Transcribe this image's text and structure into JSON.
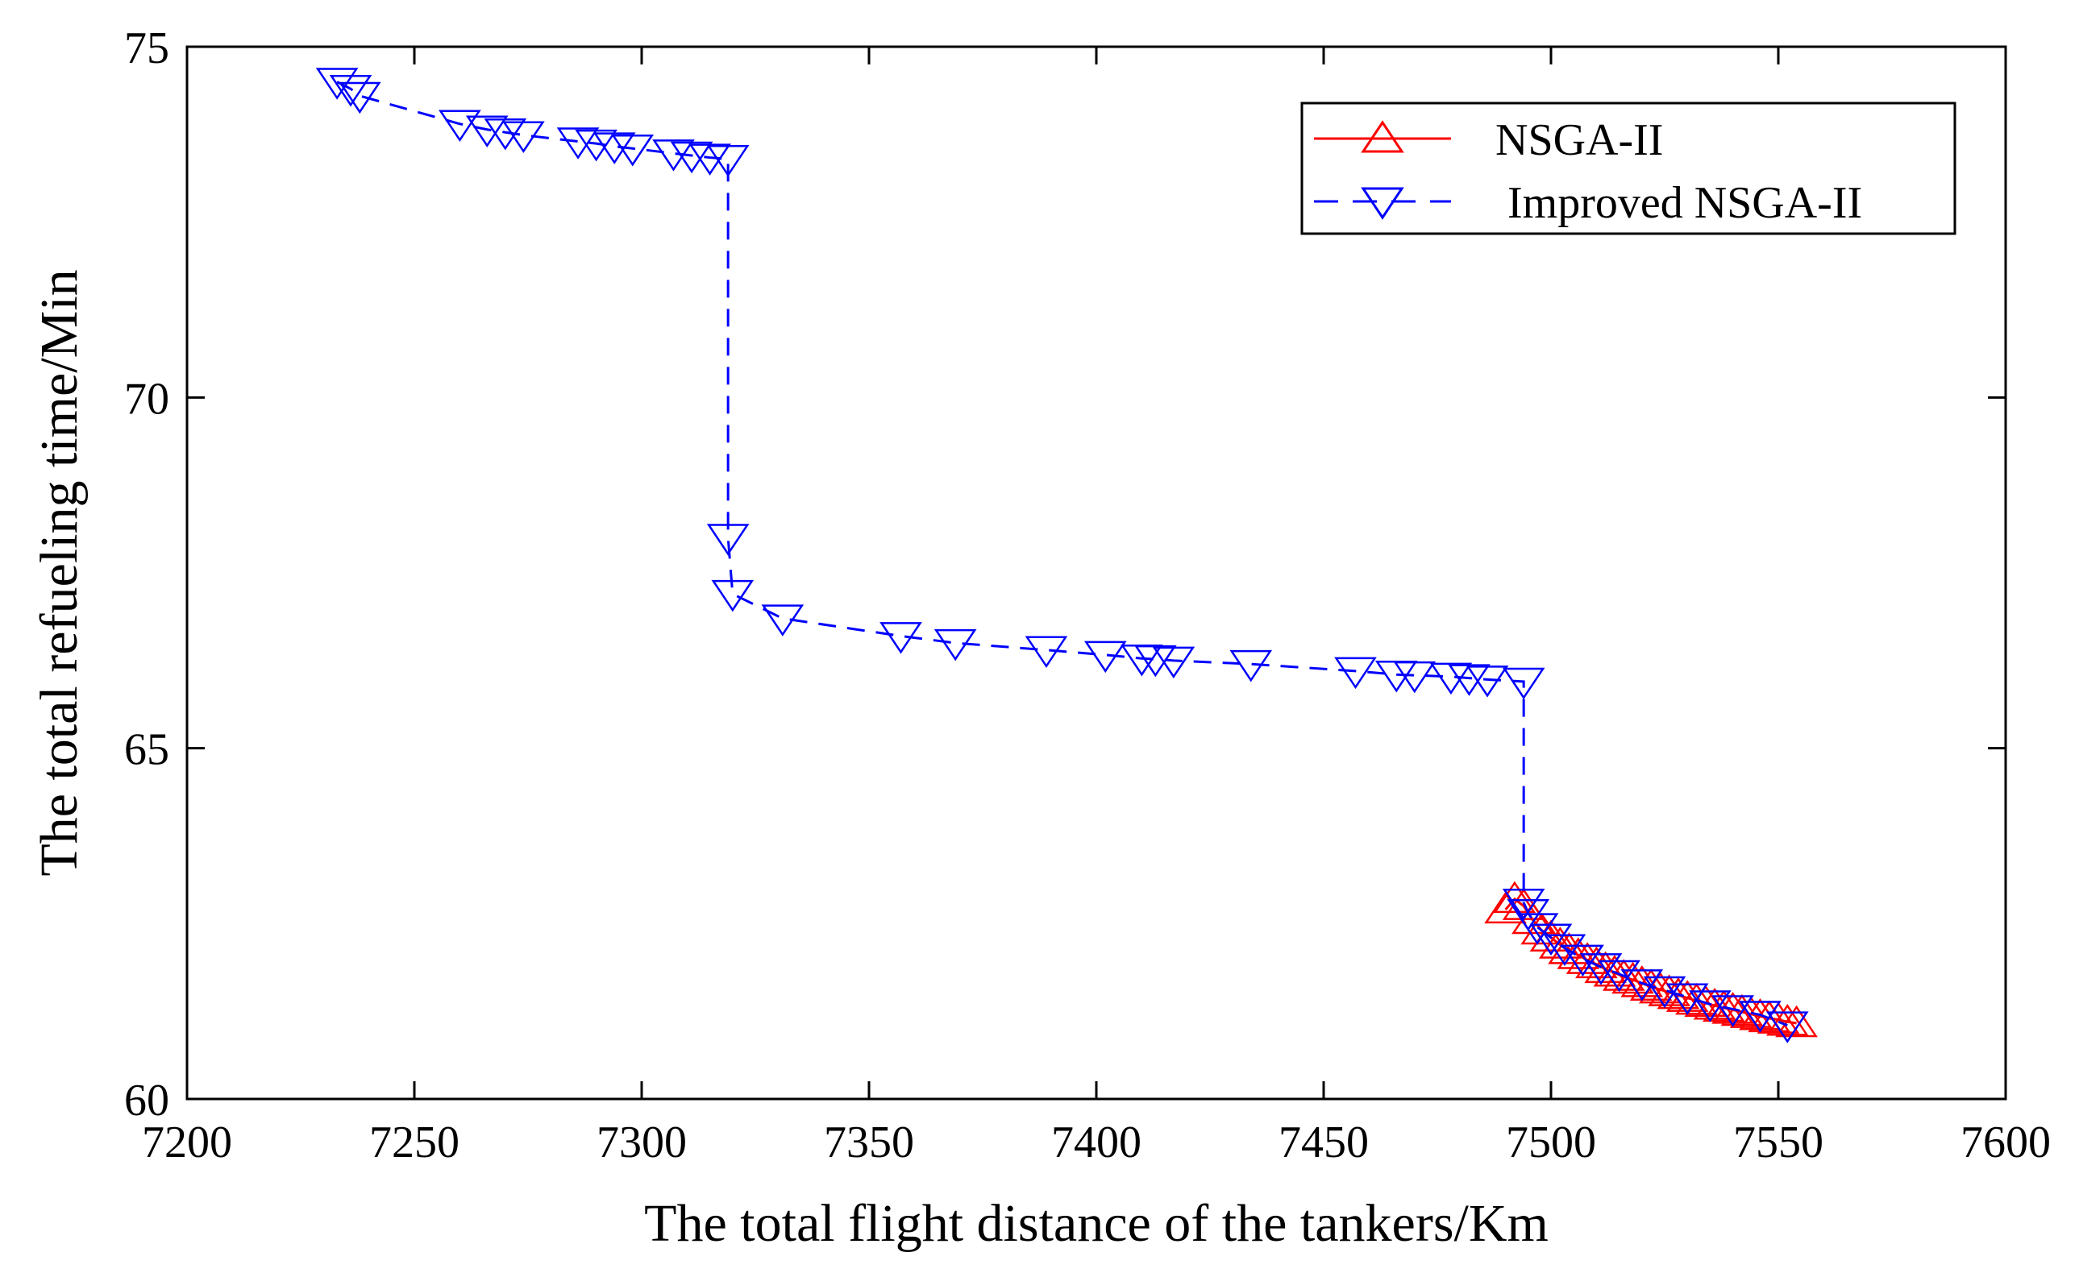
{
  "chart_data": {
    "type": "line",
    "xlabel": "The total flight distance of the tankers/Km",
    "ylabel": "The total refueling time/Min",
    "xlim": [
      7200,
      7600
    ],
    "ylim": [
      60,
      75
    ],
    "xticks": [
      "7200",
      "7250",
      "7300",
      "7350",
      "7400",
      "7450",
      "7500",
      "7550",
      "7600"
    ],
    "yticks": [
      "60",
      "65",
      "70",
      "75"
    ],
    "grid": false,
    "legend_position": "top-right",
    "series": [
      {
        "name": "NSGA-II",
        "color": "#ff0000",
        "line_style": "solid",
        "marker": "triangle-up",
        "x": [
          7490,
          7492,
          7494,
          7496,
          7498,
          7500,
          7502,
          7504,
          7506,
          7508,
          7510,
          7512,
          7514,
          7516,
          7518,
          7520,
          7522,
          7524,
          7526,
          7528,
          7530,
          7532,
          7534,
          7536,
          7538,
          7540,
          7542,
          7544,
          7546,
          7548,
          7550,
          7552,
          7554
        ],
        "y": [
          62.7,
          62.85,
          62.75,
          62.55,
          62.4,
          62.3,
          62.2,
          62.12,
          62.05,
          61.98,
          61.92,
          61.85,
          61.8,
          61.74,
          61.7,
          61.65,
          61.6,
          61.56,
          61.52,
          61.48,
          61.44,
          61.4,
          61.37,
          61.33,
          61.3,
          61.27,
          61.24,
          61.21,
          61.18,
          61.15,
          61.13,
          61.1,
          61.08
        ]
      },
      {
        "name": "Improved NSGA-II",
        "color": "#0000ff",
        "line_style": "dashed",
        "marker": "triangle-down",
        "x": [
          7233,
          7236,
          7238,
          7260,
          7266,
          7270,
          7274,
          7286,
          7290,
          7294,
          7298,
          7307,
          7311,
          7315,
          7319,
          7319,
          7320,
          7331,
          7357,
          7369,
          7389,
          7402,
          7410,
          7413,
          7417,
          7434,
          7457,
          7466,
          7470,
          7478,
          7482,
          7486,
          7494,
          7494,
          7495,
          7497,
          7500,
          7503,
          7507,
          7511,
          7515,
          7520,
          7525,
          7530,
          7535,
          7540,
          7546,
          7552
        ],
        "y": [
          74.5,
          74.4,
          74.3,
          73.9,
          73.82,
          73.78,
          73.74,
          73.65,
          73.62,
          73.58,
          73.55,
          73.48,
          73.45,
          73.42,
          73.4,
          68.0,
          67.2,
          66.85,
          66.6,
          66.5,
          66.4,
          66.33,
          66.28,
          66.27,
          66.25,
          66.2,
          66.1,
          66.05,
          66.04,
          66.02,
          66.0,
          65.98,
          65.95,
          62.8,
          62.65,
          62.45,
          62.3,
          62.15,
          62.0,
          61.88,
          61.78,
          61.65,
          61.55,
          61.45,
          61.35,
          61.28,
          61.2,
          61.05
        ]
      }
    ]
  }
}
